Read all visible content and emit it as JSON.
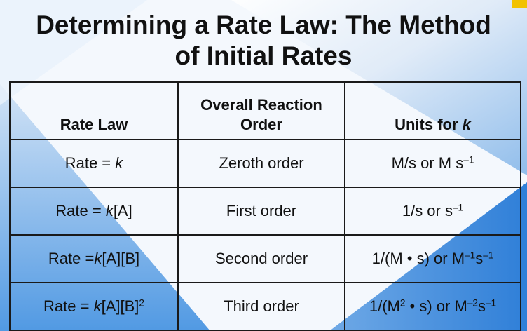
{
  "title": {
    "line1": "Determining a Rate Law: The Method",
    "line2": "of Initial Rates"
  },
  "table": {
    "headers": {
      "rate_law": "Rate Law",
      "order_line1": "Overall Reaction",
      "order_line2": "Order",
      "units_prefix": "Units for ",
      "units_k": "k"
    },
    "rows": [
      {
        "rate_pre": "Rate = ",
        "rate_k": "k",
        "rate_post": "",
        "rate_sup": "",
        "order": "Zeroth order",
        "units_a": "M/s or M s",
        "units_sup1": "–1",
        "units_b": "",
        "units_sup2": ""
      },
      {
        "rate_pre": "Rate = ",
        "rate_k": "k",
        "rate_post": "[A]",
        "rate_sup": "",
        "order": "First order",
        "units_a": "1/s or s",
        "units_sup1": "–1",
        "units_b": "",
        "units_sup2": ""
      },
      {
        "rate_pre": "Rate =",
        "rate_k": "k",
        "rate_post": "[A][B]",
        "rate_sup": "",
        "order": "Second order",
        "units_a": "1/(M • s) or M",
        "units_sup1": "–1",
        "units_b": "s",
        "units_sup2": "–1"
      },
      {
        "rate_pre": "Rate = ",
        "rate_k": "k",
        "rate_post": "[A][B]",
        "rate_sup": "2",
        "order": "Third order",
        "units_a": "1/(M",
        "units_sup1": "2",
        "units_b": " • s) or M",
        "units_sup2": "–2",
        "units_c": "s",
        "units_sup3": "–1"
      }
    ]
  }
}
